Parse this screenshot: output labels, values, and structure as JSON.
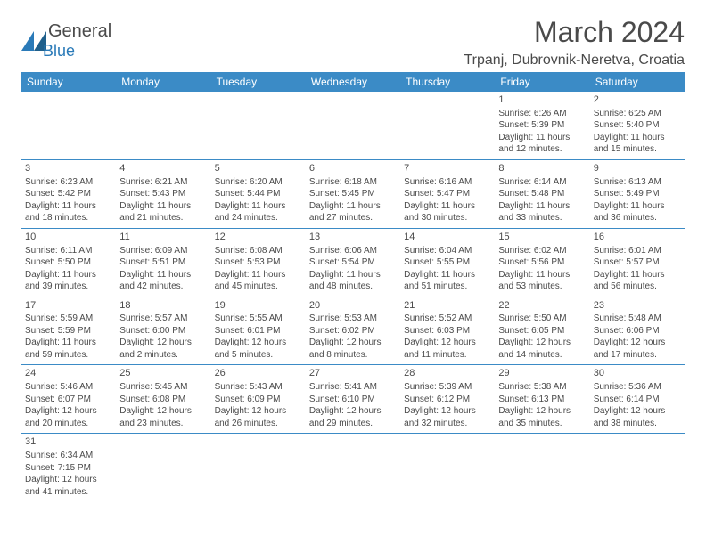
{
  "logo": {
    "text1": "General",
    "text2": "Blue",
    "color_text": "#4a4a4a",
    "color_blue": "#2a7ab8"
  },
  "title": "March 2024",
  "location": "Trpanj, Dubrovnik-Neretva, Croatia",
  "header_bg": "#3b8bc6",
  "cell_border": "#3b8bc6",
  "days": [
    "Sunday",
    "Monday",
    "Tuesday",
    "Wednesday",
    "Thursday",
    "Friday",
    "Saturday"
  ],
  "weeks": [
    [
      null,
      null,
      null,
      null,
      null,
      {
        "n": "1",
        "sr": "Sunrise: 6:26 AM",
        "ss": "Sunset: 5:39 PM",
        "d1": "Daylight: 11 hours",
        "d2": "and 12 minutes."
      },
      {
        "n": "2",
        "sr": "Sunrise: 6:25 AM",
        "ss": "Sunset: 5:40 PM",
        "d1": "Daylight: 11 hours",
        "d2": "and 15 minutes."
      }
    ],
    [
      {
        "n": "3",
        "sr": "Sunrise: 6:23 AM",
        "ss": "Sunset: 5:42 PM",
        "d1": "Daylight: 11 hours",
        "d2": "and 18 minutes."
      },
      {
        "n": "4",
        "sr": "Sunrise: 6:21 AM",
        "ss": "Sunset: 5:43 PM",
        "d1": "Daylight: 11 hours",
        "d2": "and 21 minutes."
      },
      {
        "n": "5",
        "sr": "Sunrise: 6:20 AM",
        "ss": "Sunset: 5:44 PM",
        "d1": "Daylight: 11 hours",
        "d2": "and 24 minutes."
      },
      {
        "n": "6",
        "sr": "Sunrise: 6:18 AM",
        "ss": "Sunset: 5:45 PM",
        "d1": "Daylight: 11 hours",
        "d2": "and 27 minutes."
      },
      {
        "n": "7",
        "sr": "Sunrise: 6:16 AM",
        "ss": "Sunset: 5:47 PM",
        "d1": "Daylight: 11 hours",
        "d2": "and 30 minutes."
      },
      {
        "n": "8",
        "sr": "Sunrise: 6:14 AM",
        "ss": "Sunset: 5:48 PM",
        "d1": "Daylight: 11 hours",
        "d2": "and 33 minutes."
      },
      {
        "n": "9",
        "sr": "Sunrise: 6:13 AM",
        "ss": "Sunset: 5:49 PM",
        "d1": "Daylight: 11 hours",
        "d2": "and 36 minutes."
      }
    ],
    [
      {
        "n": "10",
        "sr": "Sunrise: 6:11 AM",
        "ss": "Sunset: 5:50 PM",
        "d1": "Daylight: 11 hours",
        "d2": "and 39 minutes."
      },
      {
        "n": "11",
        "sr": "Sunrise: 6:09 AM",
        "ss": "Sunset: 5:51 PM",
        "d1": "Daylight: 11 hours",
        "d2": "and 42 minutes."
      },
      {
        "n": "12",
        "sr": "Sunrise: 6:08 AM",
        "ss": "Sunset: 5:53 PM",
        "d1": "Daylight: 11 hours",
        "d2": "and 45 minutes."
      },
      {
        "n": "13",
        "sr": "Sunrise: 6:06 AM",
        "ss": "Sunset: 5:54 PM",
        "d1": "Daylight: 11 hours",
        "d2": "and 48 minutes."
      },
      {
        "n": "14",
        "sr": "Sunrise: 6:04 AM",
        "ss": "Sunset: 5:55 PM",
        "d1": "Daylight: 11 hours",
        "d2": "and 51 minutes."
      },
      {
        "n": "15",
        "sr": "Sunrise: 6:02 AM",
        "ss": "Sunset: 5:56 PM",
        "d1": "Daylight: 11 hours",
        "d2": "and 53 minutes."
      },
      {
        "n": "16",
        "sr": "Sunrise: 6:01 AM",
        "ss": "Sunset: 5:57 PM",
        "d1": "Daylight: 11 hours",
        "d2": "and 56 minutes."
      }
    ],
    [
      {
        "n": "17",
        "sr": "Sunrise: 5:59 AM",
        "ss": "Sunset: 5:59 PM",
        "d1": "Daylight: 11 hours",
        "d2": "and 59 minutes."
      },
      {
        "n": "18",
        "sr": "Sunrise: 5:57 AM",
        "ss": "Sunset: 6:00 PM",
        "d1": "Daylight: 12 hours",
        "d2": "and 2 minutes."
      },
      {
        "n": "19",
        "sr": "Sunrise: 5:55 AM",
        "ss": "Sunset: 6:01 PM",
        "d1": "Daylight: 12 hours",
        "d2": "and 5 minutes."
      },
      {
        "n": "20",
        "sr": "Sunrise: 5:53 AM",
        "ss": "Sunset: 6:02 PM",
        "d1": "Daylight: 12 hours",
        "d2": "and 8 minutes."
      },
      {
        "n": "21",
        "sr": "Sunrise: 5:52 AM",
        "ss": "Sunset: 6:03 PM",
        "d1": "Daylight: 12 hours",
        "d2": "and 11 minutes."
      },
      {
        "n": "22",
        "sr": "Sunrise: 5:50 AM",
        "ss": "Sunset: 6:05 PM",
        "d1": "Daylight: 12 hours",
        "d2": "and 14 minutes."
      },
      {
        "n": "23",
        "sr": "Sunrise: 5:48 AM",
        "ss": "Sunset: 6:06 PM",
        "d1": "Daylight: 12 hours",
        "d2": "and 17 minutes."
      }
    ],
    [
      {
        "n": "24",
        "sr": "Sunrise: 5:46 AM",
        "ss": "Sunset: 6:07 PM",
        "d1": "Daylight: 12 hours",
        "d2": "and 20 minutes."
      },
      {
        "n": "25",
        "sr": "Sunrise: 5:45 AM",
        "ss": "Sunset: 6:08 PM",
        "d1": "Daylight: 12 hours",
        "d2": "and 23 minutes."
      },
      {
        "n": "26",
        "sr": "Sunrise: 5:43 AM",
        "ss": "Sunset: 6:09 PM",
        "d1": "Daylight: 12 hours",
        "d2": "and 26 minutes."
      },
      {
        "n": "27",
        "sr": "Sunrise: 5:41 AM",
        "ss": "Sunset: 6:10 PM",
        "d1": "Daylight: 12 hours",
        "d2": "and 29 minutes."
      },
      {
        "n": "28",
        "sr": "Sunrise: 5:39 AM",
        "ss": "Sunset: 6:12 PM",
        "d1": "Daylight: 12 hours",
        "d2": "and 32 minutes."
      },
      {
        "n": "29",
        "sr": "Sunrise: 5:38 AM",
        "ss": "Sunset: 6:13 PM",
        "d1": "Daylight: 12 hours",
        "d2": "and 35 minutes."
      },
      {
        "n": "30",
        "sr": "Sunrise: 5:36 AM",
        "ss": "Sunset: 6:14 PM",
        "d1": "Daylight: 12 hours",
        "d2": "and 38 minutes."
      }
    ],
    [
      {
        "n": "31",
        "sr": "Sunrise: 6:34 AM",
        "ss": "Sunset: 7:15 PM",
        "d1": "Daylight: 12 hours",
        "d2": "and 41 minutes."
      },
      null,
      null,
      null,
      null,
      null,
      null
    ]
  ]
}
